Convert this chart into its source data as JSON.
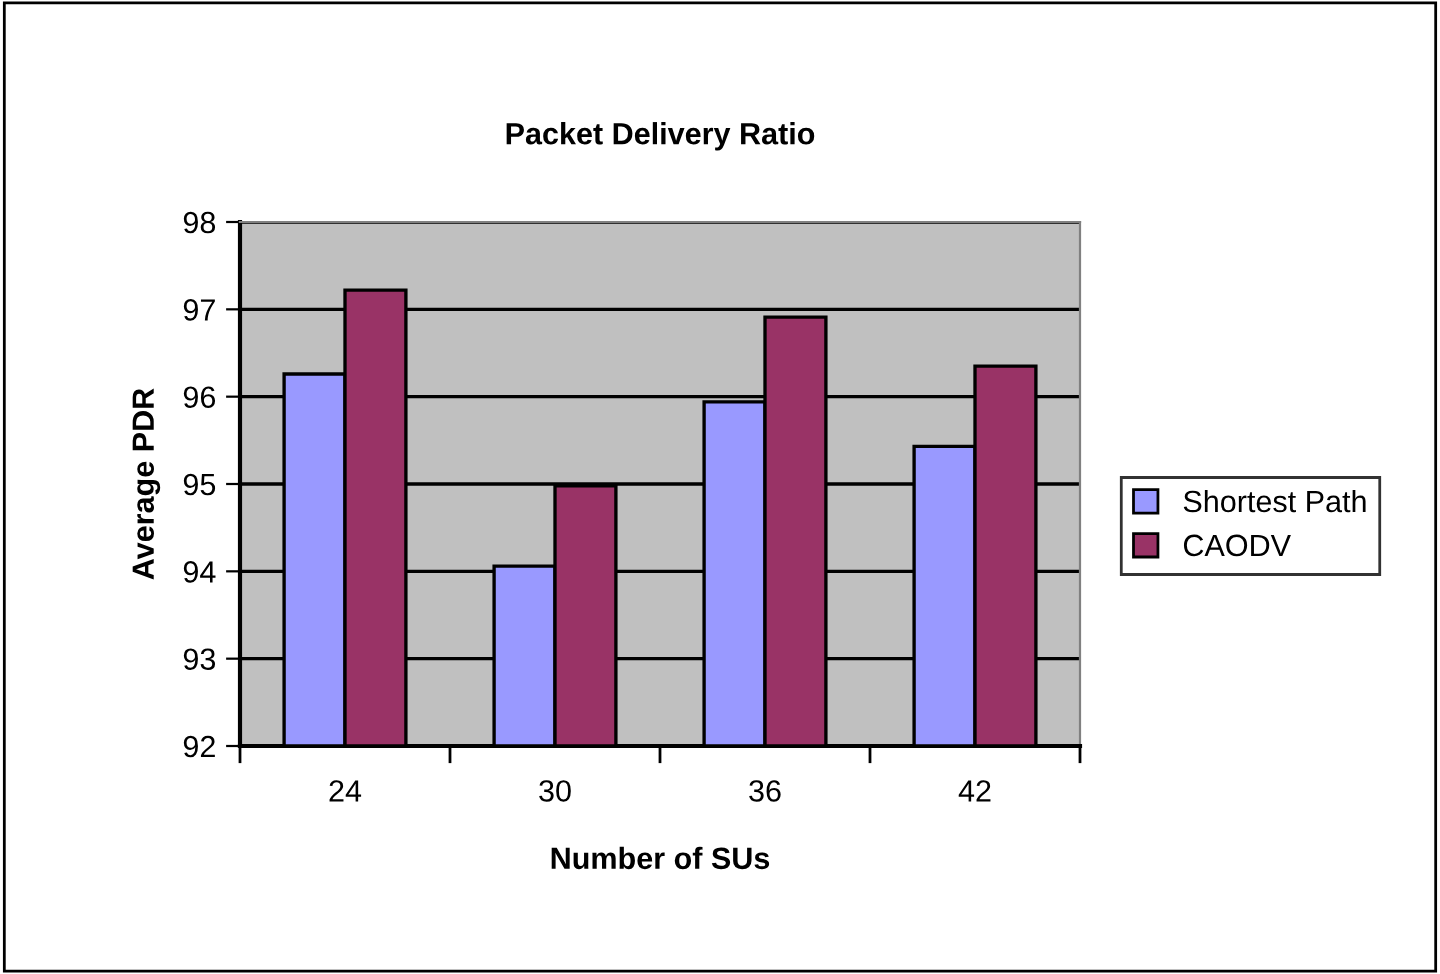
{
  "chart_data": {
    "type": "bar",
    "title": "Packet Delivery Ratio",
    "xlabel": "Number of SUs",
    "ylabel": "Average PDR",
    "categories": [
      "24",
      "30",
      "36",
      "42"
    ],
    "series": [
      {
        "name": "Shortest Path",
        "color": "#9999ff",
        "values": [
          96.26,
          94.06,
          95.94,
          95.43
        ]
      },
      {
        "name": "CAODV",
        "color": "#993366",
        "values": [
          97.22,
          94.98,
          96.91,
          96.35
        ]
      }
    ],
    "ylim": [
      92,
      98
    ],
    "yticks": [
      92,
      93,
      94,
      95,
      96,
      97,
      98
    ],
    "grid": "y",
    "legend": "right"
  }
}
